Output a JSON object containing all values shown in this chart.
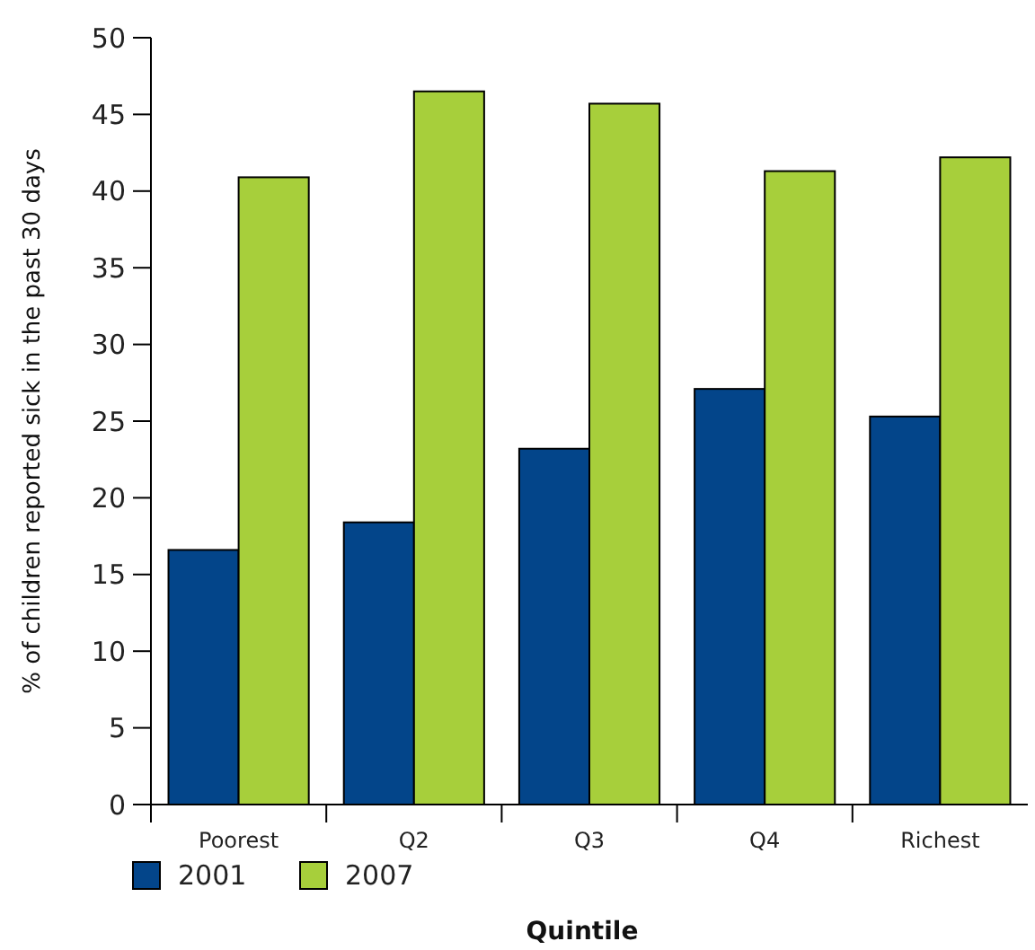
{
  "chart_data": {
    "type": "bar",
    "xlabel": "Quintile",
    "ylabel": "% of children reported sick in the past 30 days",
    "categories": [
      "Poorest",
      "Q2",
      "Q3",
      "Q4",
      "Richest"
    ],
    "series": [
      {
        "name": "2001",
        "color": "#03458a",
        "values": [
          16.6,
          18.4,
          23.2,
          27.1,
          25.3
        ]
      },
      {
        "name": "2007",
        "color": "#a7cf3b",
        "values": [
          40.9,
          46.5,
          45.7,
          41.3,
          42.2
        ]
      }
    ],
    "ylim": [
      0,
      50
    ],
    "yticks": [
      0,
      5,
      10,
      15,
      20,
      25,
      30,
      35,
      40,
      45,
      50
    ],
    "grid": false,
    "legend": "bottom left"
  }
}
